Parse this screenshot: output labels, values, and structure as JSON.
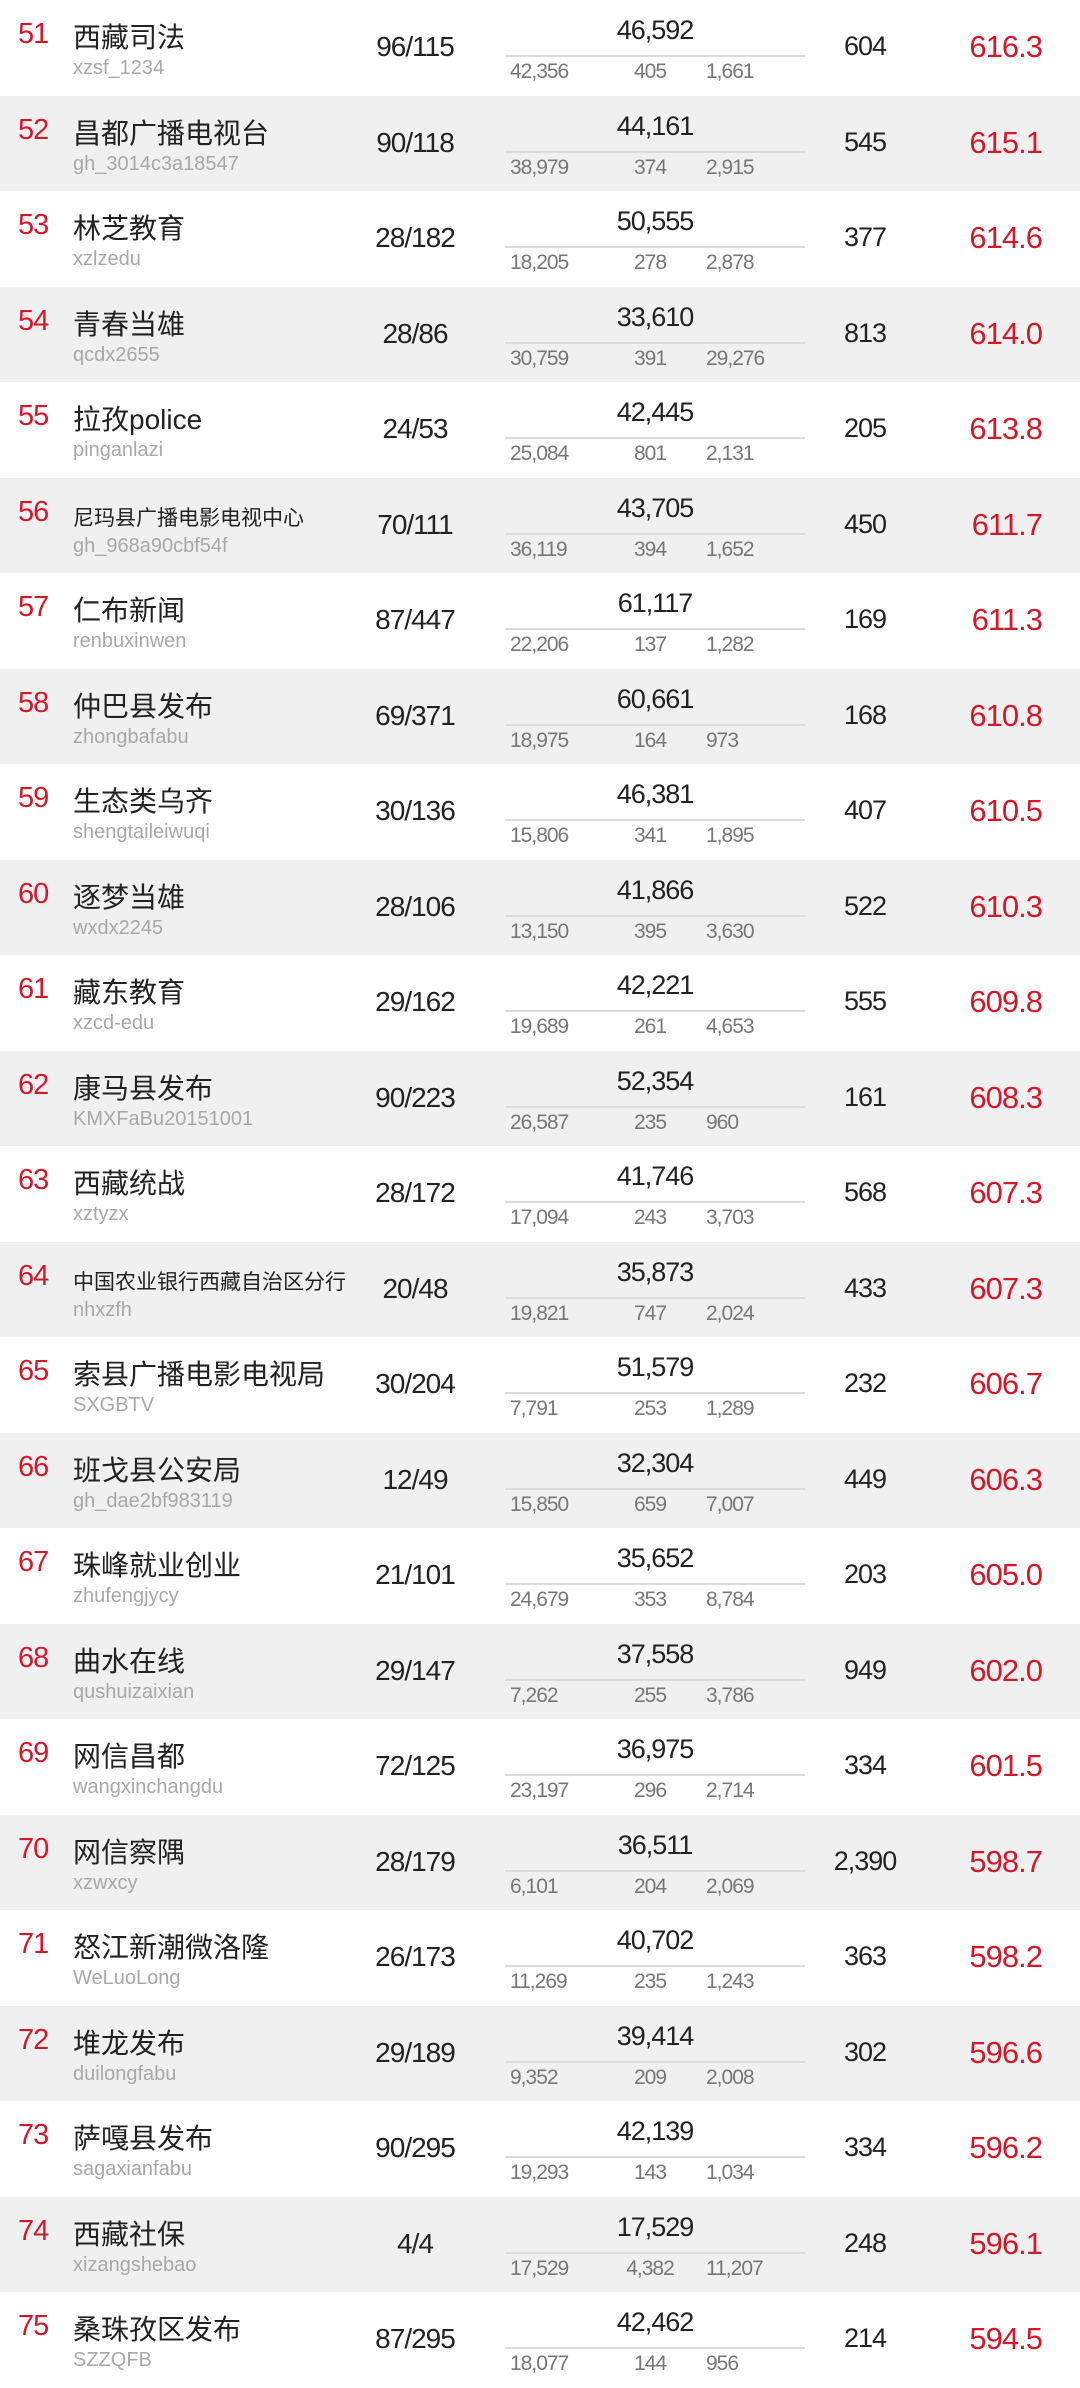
{
  "colors": {
    "accent": "#d4182b",
    "alt_row": "#f0f0f0"
  },
  "rows": [
    {
      "rank": "51",
      "name": "西藏司法",
      "account": "xzsf_1234",
      "ratio": "96/115",
      "total": "46,592",
      "sub": [
        "42,356",
        "405",
        "1,661"
      ],
      "count": "604",
      "score": "616.3"
    },
    {
      "rank": "52",
      "name": "昌都广播电视台",
      "account": "gh_3014c3a18547",
      "ratio": "90/118",
      "total": "44,161",
      "sub": [
        "38,979",
        "374",
        "2,915"
      ],
      "count": "545",
      "score": "615.1"
    },
    {
      "rank": "53",
      "name": "林芝教育",
      "account": "xzlzedu",
      "ratio": "28/182",
      "total": "50,555",
      "sub": [
        "18,205",
        "278",
        "2,878"
      ],
      "count": "377",
      "score": "614.6"
    },
    {
      "rank": "54",
      "name": "青春当雄",
      "account": "qcdx2655",
      "ratio": "28/86",
      "total": "33,610",
      "sub": [
        "30,759",
        "391",
        "29,276"
      ],
      "count": "813",
      "score": "614.0"
    },
    {
      "rank": "55",
      "name": "拉孜police",
      "account": "pinganlazi",
      "ratio": "24/53",
      "total": "42,445",
      "sub": [
        "25,084",
        "801",
        "2,131"
      ],
      "count": "205",
      "score": "613.8"
    },
    {
      "rank": "56",
      "name": "尼玛县广播电影电视中心",
      "account": "gh_968a90cbf54f",
      "ratio": "70/111",
      "total": "43,705",
      "sub": [
        "36,119",
        "394",
        "1,652"
      ],
      "count": "450",
      "score": "611.7"
    },
    {
      "rank": "57",
      "name": "仁布新闻",
      "account": "renbuxinwen",
      "ratio": "87/447",
      "total": "61,117",
      "sub": [
        "22,206",
        "137",
        "1,282"
      ],
      "count": "169",
      "score": "611.3"
    },
    {
      "rank": "58",
      "name": "仲巴县发布",
      "account": "zhongbafabu",
      "ratio": "69/371",
      "total": "60,661",
      "sub": [
        "18,975",
        "164",
        "973"
      ],
      "count": "168",
      "score": "610.8"
    },
    {
      "rank": "59",
      "name": "生态类乌齐",
      "account": "shengtaileiwuqi",
      "ratio": "30/136",
      "total": "46,381",
      "sub": [
        "15,806",
        "341",
        "1,895"
      ],
      "count": "407",
      "score": "610.5"
    },
    {
      "rank": "60",
      "name": "逐梦当雄",
      "account": "wxdx2245",
      "ratio": "28/106",
      "total": "41,866",
      "sub": [
        "13,150",
        "395",
        "3,630"
      ],
      "count": "522",
      "score": "610.3"
    },
    {
      "rank": "61",
      "name": "藏东教育",
      "account": "xzcd-edu",
      "ratio": "29/162",
      "total": "42,221",
      "sub": [
        "19,689",
        "261",
        "4,653"
      ],
      "count": "555",
      "score": "609.8"
    },
    {
      "rank": "62",
      "name": "康马县发布",
      "account": "KMXFaBu20151001",
      "ratio": "90/223",
      "total": "52,354",
      "sub": [
        "26,587",
        "235",
        "960"
      ],
      "count": "161",
      "score": "608.3"
    },
    {
      "rank": "63",
      "name": "西藏统战",
      "account": "xztyzx",
      "ratio": "28/172",
      "total": "41,746",
      "sub": [
        "17,094",
        "243",
        "3,703"
      ],
      "count": "568",
      "score": "607.3"
    },
    {
      "rank": "64",
      "name": "中国农业银行西藏自治区分行",
      "account": "nhxzfh",
      "ratio": "20/48",
      "total": "35,873",
      "sub": [
        "19,821",
        "747",
        "2,024"
      ],
      "count": "433",
      "score": "607.3"
    },
    {
      "rank": "65",
      "name": "索县广播电影电视局",
      "account": "SXGBTV",
      "ratio": "30/204",
      "total": "51,579",
      "sub": [
        "7,791",
        "253",
        "1,289"
      ],
      "count": "232",
      "score": "606.7"
    },
    {
      "rank": "66",
      "name": "班戈县公安局",
      "account": "gh_dae2bf983119",
      "ratio": "12/49",
      "total": "32,304",
      "sub": [
        "15,850",
        "659",
        "7,007"
      ],
      "count": "449",
      "score": "606.3"
    },
    {
      "rank": "67",
      "name": "珠峰就业创业",
      "account": "zhufengjycy",
      "ratio": "21/101",
      "total": "35,652",
      "sub": [
        "24,679",
        "353",
        "8,784"
      ],
      "count": "203",
      "score": "605.0"
    },
    {
      "rank": "68",
      "name": "曲水在线",
      "account": "qushuizaixian",
      "ratio": "29/147",
      "total": "37,558",
      "sub": [
        "7,262",
        "255",
        "3,786"
      ],
      "count": "949",
      "score": "602.0"
    },
    {
      "rank": "69",
      "name": "网信昌都",
      "account": "wangxinchangdu",
      "ratio": "72/125",
      "total": "36,975",
      "sub": [
        "23,197",
        "296",
        "2,714"
      ],
      "count": "334",
      "score": "601.5"
    },
    {
      "rank": "70",
      "name": "网信察隅",
      "account": "xzwxcy",
      "ratio": "28/179",
      "total": "36,511",
      "sub": [
        "6,101",
        "204",
        "2,069"
      ],
      "count": "2,390",
      "score": "598.7"
    },
    {
      "rank": "71",
      "name": "怒江新潮微洛隆",
      "account": "WeLuoLong",
      "ratio": "26/173",
      "total": "40,702",
      "sub": [
        "11,269",
        "235",
        "1,243"
      ],
      "count": "363",
      "score": "598.2"
    },
    {
      "rank": "72",
      "name": "堆龙发布",
      "account": "duilongfabu",
      "ratio": "29/189",
      "total": "39,414",
      "sub": [
        "9,352",
        "209",
        "2,008"
      ],
      "count": "302",
      "score": "596.6"
    },
    {
      "rank": "73",
      "name": "萨嘎县发布",
      "account": "sagaxianfabu",
      "ratio": "90/295",
      "total": "42,139",
      "sub": [
        "19,293",
        "143",
        "1,034"
      ],
      "count": "334",
      "score": "596.2"
    },
    {
      "rank": "74",
      "name": "西藏社保",
      "account": "xizangshebao",
      "ratio": "4/4",
      "total": "17,529",
      "sub": [
        "17,529",
        "4,382",
        "11,207"
      ],
      "count": "248",
      "score": "596.1"
    },
    {
      "rank": "75",
      "name": "桑珠孜区发布",
      "account": "SZZQFB",
      "ratio": "87/295",
      "total": "42,462",
      "sub": [
        "18,077",
        "144",
        "956"
      ],
      "count": "214",
      "score": "594.5"
    }
  ]
}
